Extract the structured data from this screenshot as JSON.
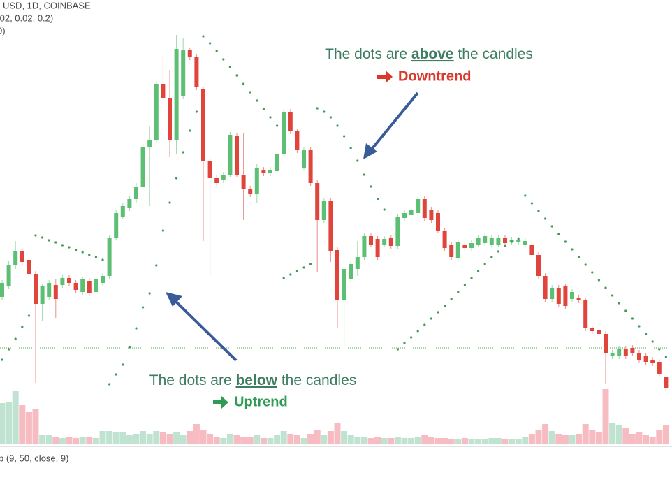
{
  "chart_data": {
    "type": "candlestick",
    "header": [
      "USD, 1D, COINBASE",
      ".02, 0.02, 0.2)",
      "0)"
    ],
    "lower_panel_label": "p (9, 50, close, 9)",
    "open": [
      175,
      190,
      220,
      240,
      228,
      208,
      165,
      175,
      192,
      192,
      202,
      195,
      182,
      198,
      182,
      195,
      205,
      260,
      290,
      302,
      315,
      332,
      390,
      400,
      480,
      460,
      400,
      462,
      528,
      518,
      472,
      370,
      345,
      342,
      350,
      405,
      350,
      330,
      322,
      357,
      352,
      355,
      380,
      440,
      412,
      360,
      385,
      338,
      285,
      312,
      242,
      170,
      200,
      215,
      232,
      262,
      258,
      250,
      260,
      248,
      288,
      292,
      295,
      315,
      300,
      295,
      270,
      250,
      230,
      250,
      245,
      250,
      252,
      250,
      250,
      260,
      254,
      253,
      250,
      250,
      235,
      205,
      172,
      188,
      190,
      172,
      174,
      170,
      130,
      128,
      122,
      90,
      90,
      100,
      102,
      95,
      90,
      85,
      82,
      60
    ],
    "high": [
      199,
      226,
      255,
      244,
      232,
      212,
      194,
      199,
      200,
      206,
      206,
      199,
      204,
      202,
      204,
      209,
      264,
      299,
      309,
      319,
      338,
      394,
      420,
      484,
      520,
      500,
      550,
      545,
      532,
      522,
      476,
      375,
      349,
      354,
      411,
      409,
      410,
      334,
      365,
      361,
      361,
      384,
      444,
      444,
      416,
      389,
      389,
      342,
      316,
      316,
      246,
      219,
      226,
      255,
      266,
      266,
      262,
      262,
      264,
      294,
      299,
      304,
      319,
      319,
      304,
      299,
      274,
      254,
      257,
      254,
      256,
      264,
      266,
      264,
      264,
      264,
      261,
      261,
      259,
      254,
      239,
      209,
      192,
      192,
      194,
      186,
      178,
      174,
      134,
      132,
      126,
      99,
      104,
      104,
      106,
      99,
      94,
      89,
      86,
      64
    ],
    "low": [
      171,
      186,
      215,
      221,
      204,
      52,
      140,
      171,
      145,
      188,
      191,
      181,
      178,
      176,
      178,
      191,
      201,
      256,
      286,
      298,
      310,
      328,
      305,
      396,
      455,
      375,
      380,
      458,
      514,
      471,
      255,
      205,
      334,
      338,
      346,
      346,
      285,
      318,
      310,
      348,
      348,
      351,
      376,
      408,
      381,
      356,
      334,
      210,
      281,
      225,
      130,
      103,
      196,
      205,
      228,
      246,
      228,
      246,
      244,
      244,
      284,
      288,
      291,
      284,
      281,
      266,
      241,
      228,
      226,
      241,
      241,
      246,
      248,
      246,
      246,
      248,
      250,
      249,
      246,
      231,
      201,
      168,
      168,
      161,
      158,
      168,
      166,
      126,
      122,
      118,
      50,
      86,
      86,
      86,
      91,
      81,
      78,
      76,
      61,
      41
    ],
    "close": [
      195,
      220,
      240,
      225,
      208,
      165,
      190,
      195,
      172,
      202,
      195,
      185,
      200,
      180,
      200,
      205,
      260,
      295,
      305,
      315,
      332,
      390,
      400,
      480,
      460,
      400,
      530,
      528,
      518,
      475,
      370,
      345,
      338,
      350,
      407,
      350,
      330,
      322,
      360,
      352,
      357,
      380,
      440,
      412,
      385,
      385,
      338,
      285,
      312,
      240,
      170,
      215,
      222,
      232,
      262,
      250,
      232,
      258,
      248,
      290,
      295,
      300,
      315,
      288,
      285,
      270,
      245,
      232,
      253,
      245,
      252,
      260,
      262,
      260,
      260,
      252,
      257,
      257,
      255,
      235,
      205,
      172,
      188,
      165,
      162,
      182,
      170,
      130,
      126,
      122,
      95,
      95,
      100,
      90,
      95,
      85,
      82,
      80,
      65,
      45
    ],
    "up_color": "#5cbf74",
    "down_color": "#e0443b",
    "ylim": [
      0,
      600
    ],
    "sar": {
      "color": "#3f9a52",
      "values": [
        85,
        100,
        115,
        132,
        148,
        263,
        260,
        256,
        253,
        249,
        246,
        242,
        239,
        235,
        232,
        228,
        50,
        64,
        78,
        103,
        130,
        160,
        180,
        220,
        270,
        310,
        345,
        382,
        413,
        440,
        548,
        538,
        527,
        515,
        504,
        492,
        480,
        468,
        456,
        444,
        432,
        420,
        202,
        207,
        212,
        217,
        222,
        445,
        440,
        432,
        420,
        405,
        388,
        370,
        350,
        333,
        315,
        300,
        null,
        100,
        109,
        117,
        126,
        135,
        144,
        153,
        162,
        172,
        182,
        192,
        202,
        212,
        222,
        232,
        240,
        248,
        254,
        258,
        320,
        309,
        298,
        287,
        276,
        265,
        254,
        243,
        232,
        221,
        210,
        199,
        188,
        177,
        166,
        155,
        144,
        133,
        122,
        111,
        100,
        89
      ]
    },
    "price_line": {
      "value": 102,
      "color": "#4caf50"
    },
    "volume": {
      "up_color": "#bfe3d0",
      "down_color": "#f6bcc1",
      "values": [
        58,
        60,
        75,
        55,
        45,
        50,
        12,
        12,
        10,
        8,
        10,
        8,
        10,
        10,
        8,
        18,
        18,
        16,
        16,
        12,
        14,
        18,
        14,
        18,
        16,
        14,
        16,
        12,
        18,
        28,
        20,
        14,
        10,
        8,
        14,
        12,
        10,
        10,
        12,
        8,
        8,
        12,
        18,
        14,
        12,
        8,
        14,
        20,
        12,
        18,
        30,
        18,
        12,
        10,
        10,
        8,
        10,
        8,
        8,
        10,
        8,
        8,
        10,
        12,
        10,
        8,
        8,
        6,
        6,
        8,
        6,
        6,
        6,
        8,
        8,
        6,
        6,
        6,
        10,
        14,
        20,
        28,
        18,
        14,
        12,
        12,
        14,
        28,
        20,
        16,
        78,
        30,
        26,
        22,
        14,
        16,
        12,
        10,
        20,
        26
      ]
    },
    "annotations": [
      {
        "parts": [
          "The dots are ",
          "above",
          " the candles"
        ],
        "label": "Downtrend",
        "color": "#d9382b"
      },
      {
        "parts": [
          "The dots are ",
          "below",
          " the candles"
        ],
        "label": "Uptrend",
        "color": "#2e9c55"
      }
    ]
  }
}
